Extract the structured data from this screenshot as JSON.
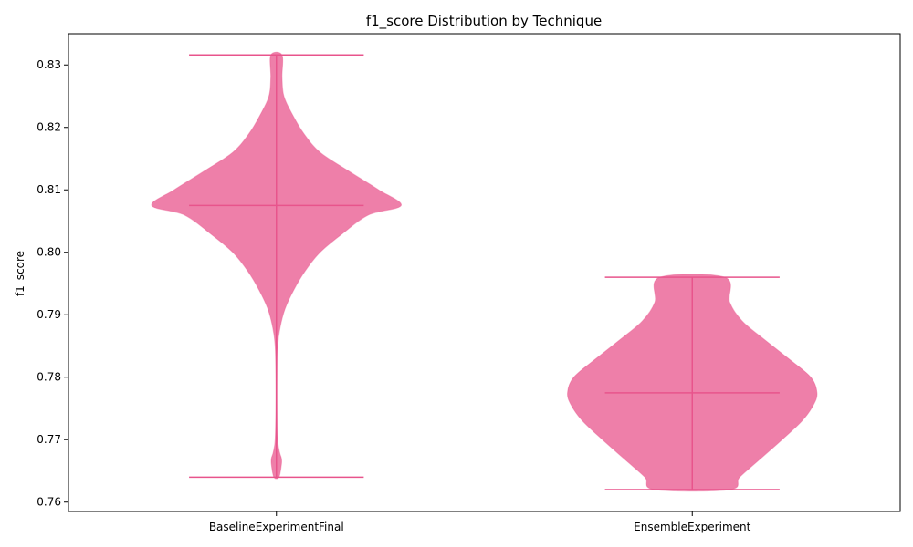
{
  "chart_data": {
    "type": "violin",
    "title": "f1_score Distribution by Technique",
    "xlabel": "",
    "ylabel": "f1_score",
    "categories": [
      "BaselineExperimentFinal",
      "EnsembleExperiment"
    ],
    "ylim": [
      0.7585,
      0.835
    ],
    "yticks": [
      0.76,
      0.77,
      0.78,
      0.79,
      0.8,
      0.81,
      0.82,
      0.83
    ],
    "ytick_labels": [
      "0.76",
      "0.77",
      "0.78",
      "0.79",
      "0.80",
      "0.81",
      "0.82",
      "0.83"
    ],
    "grid": false,
    "colors": {
      "fill": "#e8548c",
      "fill_opacity": 0.75,
      "line": "#e8548c"
    },
    "series": [
      {
        "category": "BaselineExperimentFinal",
        "min": 0.764,
        "max": 0.8316,
        "median": 0.8075,
        "density_profile": [
          [
            0.764,
            0.02
          ],
          [
            0.766,
            0.04
          ],
          [
            0.767,
            0.04
          ],
          [
            0.768,
            0.025
          ],
          [
            0.77,
            0.01
          ],
          [
            0.775,
            0.005
          ],
          [
            0.78,
            0.005
          ],
          [
            0.785,
            0.01
          ],
          [
            0.788,
            0.03
          ],
          [
            0.791,
            0.07
          ],
          [
            0.794,
            0.14
          ],
          [
            0.797,
            0.23
          ],
          [
            0.8,
            0.35
          ],
          [
            0.803,
            0.53
          ],
          [
            0.806,
            0.74
          ],
          [
            0.8075,
            1.0
          ],
          [
            0.81,
            0.82
          ],
          [
            0.813,
            0.58
          ],
          [
            0.816,
            0.35
          ],
          [
            0.819,
            0.22
          ],
          [
            0.822,
            0.13
          ],
          [
            0.825,
            0.06
          ],
          [
            0.828,
            0.045
          ],
          [
            0.8316,
            0.045
          ]
        ]
      },
      {
        "category": "EnsembleExperiment",
        "min": 0.762,
        "max": 0.796,
        "median": 0.7775,
        "density_profile": [
          [
            0.762,
            0.3
          ],
          [
            0.764,
            0.38
          ],
          [
            0.767,
            0.55
          ],
          [
            0.77,
            0.72
          ],
          [
            0.773,
            0.88
          ],
          [
            0.7755,
            0.97
          ],
          [
            0.7775,
            1.0
          ],
          [
            0.78,
            0.95
          ],
          [
            0.783,
            0.77
          ],
          [
            0.786,
            0.58
          ],
          [
            0.789,
            0.4
          ],
          [
            0.792,
            0.3
          ],
          [
            0.796,
            0.26
          ]
        ]
      }
    ]
  }
}
